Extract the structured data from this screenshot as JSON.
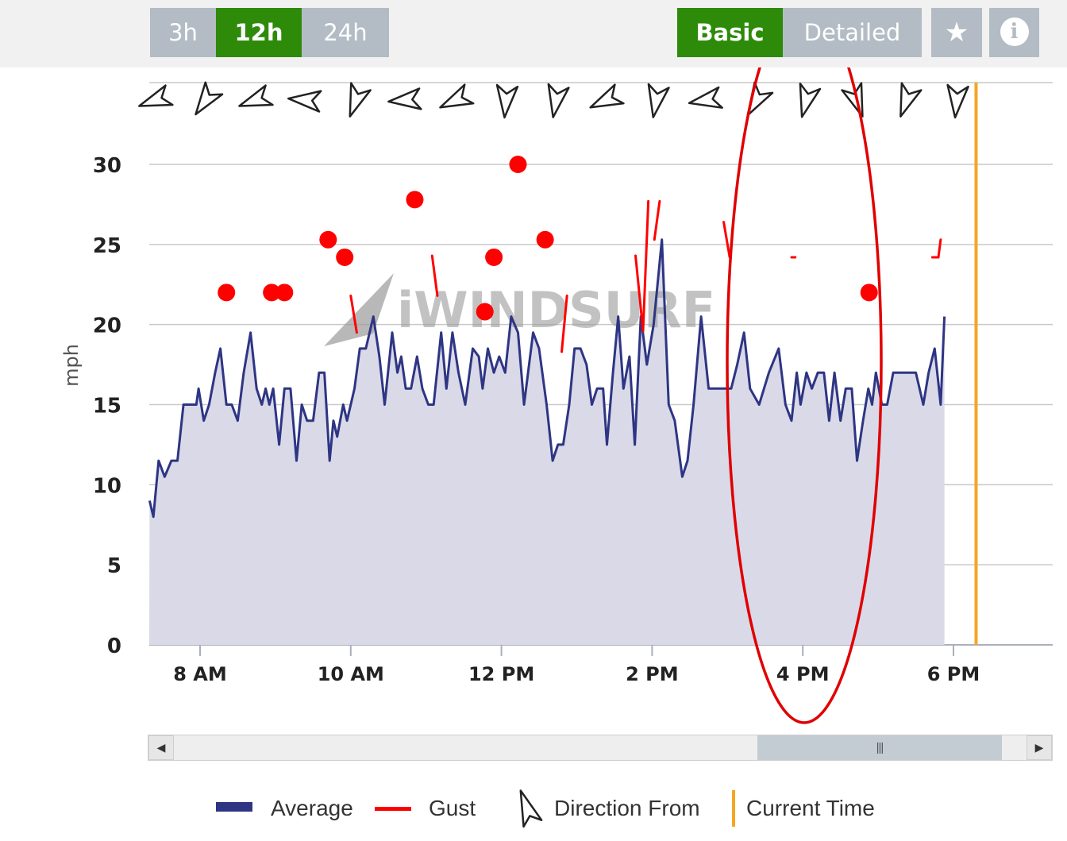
{
  "controls": {
    "range_buttons": [
      {
        "label": "3h",
        "active": false
      },
      {
        "label": "12h",
        "active": true
      },
      {
        "label": "24h",
        "active": false
      }
    ],
    "view_buttons": [
      {
        "label": "Basic",
        "active": true
      },
      {
        "label": "Detailed",
        "active": false
      }
    ],
    "icons": [
      "star-icon",
      "info-icon"
    ],
    "info_glyph": "i"
  },
  "watermark": "iWINDSURF",
  "legend": {
    "average": "Average",
    "gust": "Gust",
    "direction": "Direction From",
    "current_time": "Current Time"
  },
  "colors": {
    "average_line": "#2e3583",
    "area_fill": "#d9d9e8",
    "gust": "#ff0000",
    "current_time": "#f5a623",
    "active_button": "#2e8b0a",
    "inactive_button": "#b3bcc4",
    "annotation": "#e00000"
  },
  "chart_data": {
    "type": "line",
    "ylabel": "mph",
    "xlabel": "",
    "ylim": [
      0,
      30
    ],
    "y_ticks": [
      0,
      5,
      10,
      15,
      20,
      25,
      30
    ],
    "x_domain_hours": [
      7.33,
      19.25
    ],
    "x_ticks": [
      {
        "hour": 8,
        "label": "8 AM"
      },
      {
        "hour": 10,
        "label": "10 AM"
      },
      {
        "hour": 12,
        "label": "12 PM"
      },
      {
        "hour": 14,
        "label": "2 PM"
      },
      {
        "hour": 16,
        "label": "4 PM"
      },
      {
        "hour": 18,
        "label": "6 PM"
      }
    ],
    "current_time_hour": 18.3,
    "average": {
      "name": "Average",
      "points": [
        [
          7.33,
          9
        ],
        [
          7.38,
          8
        ],
        [
          7.45,
          11.5
        ],
        [
          7.53,
          10.5
        ],
        [
          7.62,
          11.5
        ],
        [
          7.7,
          11.5
        ],
        [
          7.78,
          15
        ],
        [
          7.88,
          15
        ],
        [
          7.95,
          15
        ],
        [
          7.98,
          16
        ],
        [
          8.05,
          14
        ],
        [
          8.12,
          15
        ],
        [
          8.2,
          17
        ],
        [
          8.27,
          18.5
        ],
        [
          8.35,
          15
        ],
        [
          8.42,
          15
        ],
        [
          8.5,
          14
        ],
        [
          8.58,
          17
        ],
        [
          8.67,
          19.5
        ],
        [
          8.75,
          16
        ],
        [
          8.82,
          15
        ],
        [
          8.87,
          16
        ],
        [
          8.92,
          15
        ],
        [
          8.97,
          16
        ],
        [
          9.05,
          12.5
        ],
        [
          9.12,
          16
        ],
        [
          9.2,
          16
        ],
        [
          9.28,
          11.5
        ],
        [
          9.35,
          15
        ],
        [
          9.42,
          14
        ],
        [
          9.5,
          14
        ],
        [
          9.58,
          17
        ],
        [
          9.65,
          17
        ],
        [
          9.72,
          11.5
        ],
        [
          9.77,
          14
        ],
        [
          9.82,
          13
        ],
        [
          9.9,
          15
        ],
        [
          9.95,
          14
        ],
        [
          10.05,
          16
        ],
        [
          10.12,
          18.5
        ],
        [
          10.2,
          18.5
        ],
        [
          10.3,
          20.5
        ],
        [
          10.38,
          18
        ],
        [
          10.45,
          15
        ],
        [
          10.55,
          19.5
        ],
        [
          10.62,
          17
        ],
        [
          10.67,
          18
        ],
        [
          10.73,
          16
        ],
        [
          10.8,
          16
        ],
        [
          10.88,
          18
        ],
        [
          10.95,
          16
        ],
        [
          11.03,
          15
        ],
        [
          11.1,
          15
        ],
        [
          11.2,
          19.5
        ],
        [
          11.27,
          16
        ],
        [
          11.35,
          19.5
        ],
        [
          11.43,
          17
        ],
        [
          11.52,
          15
        ],
        [
          11.62,
          18.5
        ],
        [
          11.7,
          18
        ],
        [
          11.75,
          16
        ],
        [
          11.82,
          18.5
        ],
        [
          11.9,
          17
        ],
        [
          11.97,
          18
        ],
        [
          12.05,
          17
        ],
        [
          12.13,
          20.5
        ],
        [
          12.22,
          19.5
        ],
        [
          12.3,
          15
        ],
        [
          12.42,
          19.5
        ],
        [
          12.5,
          18.5
        ],
        [
          12.6,
          15
        ],
        [
          12.68,
          11.5
        ],
        [
          12.75,
          12.5
        ],
        [
          12.82,
          12.5
        ],
        [
          12.9,
          15
        ],
        [
          12.97,
          18.5
        ],
        [
          13.05,
          18.5
        ],
        [
          13.13,
          17.5
        ],
        [
          13.2,
          15
        ],
        [
          13.27,
          16
        ],
        [
          13.35,
          16
        ],
        [
          13.4,
          12.5
        ],
        [
          13.48,
          17
        ],
        [
          13.55,
          20.5
        ],
        [
          13.62,
          16
        ],
        [
          13.7,
          18
        ],
        [
          13.77,
          12.5
        ],
        [
          13.85,
          20.5
        ],
        [
          13.93,
          17.5
        ],
        [
          14.02,
          20
        ],
        [
          14.13,
          25.3
        ],
        [
          14.22,
          15
        ],
        [
          14.3,
          14
        ],
        [
          14.4,
          10.5
        ],
        [
          14.47,
          11.5
        ],
        [
          14.55,
          15
        ],
        [
          14.65,
          20.5
        ],
        [
          14.75,
          16
        ],
        [
          14.85,
          16
        ],
        [
          14.95,
          16
        ],
        [
          15.05,
          16
        ],
        [
          15.13,
          17.5
        ],
        [
          15.22,
          19.5
        ],
        [
          15.3,
          16
        ],
        [
          15.42,
          15
        ],
        [
          15.55,
          17
        ],
        [
          15.68,
          18.5
        ],
        [
          15.77,
          15
        ],
        [
          15.85,
          14
        ],
        [
          15.92,
          17
        ],
        [
          15.97,
          15
        ],
        [
          16.05,
          17
        ],
        [
          16.12,
          16
        ],
        [
          16.2,
          17
        ],
        [
          16.28,
          17
        ],
        [
          16.35,
          14
        ],
        [
          16.42,
          17
        ],
        [
          16.5,
          14
        ],
        [
          16.57,
          16
        ],
        [
          16.65,
          16
        ],
        [
          16.72,
          11.5
        ],
        [
          16.8,
          14
        ],
        [
          16.87,
          16
        ],
        [
          16.92,
          15
        ],
        [
          16.97,
          17
        ],
        [
          17.05,
          15
        ],
        [
          17.12,
          15
        ],
        [
          17.2,
          17
        ],
        [
          17.3,
          17
        ],
        [
          17.4,
          17
        ],
        [
          17.5,
          17
        ],
        [
          17.6,
          15
        ],
        [
          17.67,
          17
        ],
        [
          17.75,
          18.5
        ],
        [
          17.83,
          15
        ],
        [
          17.88,
          20.5
        ]
      ]
    },
    "gust_dots": [
      [
        8.35,
        22
      ],
      [
        8.95,
        22
      ],
      [
        9.12,
        22
      ],
      [
        9.7,
        25.3
      ],
      [
        9.92,
        24.2
      ],
      [
        10.85,
        27.8
      ],
      [
        11.78,
        20.8
      ],
      [
        11.9,
        24.2
      ],
      [
        12.22,
        30
      ],
      [
        12.58,
        25.3
      ],
      [
        16.88,
        22
      ]
    ],
    "gust_segments": [
      [
        [
          10.0,
          21.8
        ],
        [
          10.08,
          19.5
        ]
      ],
      [
        [
          11.08,
          24.3
        ],
        [
          11.15,
          21.8
        ]
      ],
      [
        [
          12.87,
          21.8
        ],
        [
          12.8,
          18.3
        ]
      ],
      [
        [
          13.78,
          24.3
        ],
        [
          13.88,
          19.6
        ]
      ],
      [
        [
          13.88,
          19.6
        ],
        [
          13.95,
          27.7
        ]
      ],
      [
        [
          14.03,
          25.3
        ],
        [
          14.1,
          27.7
        ]
      ],
      [
        [
          14.95,
          26.4
        ],
        [
          15.03,
          24.2
        ]
      ],
      [
        [
          15.85,
          24.2
        ],
        [
          15.9,
          24.2
        ]
      ],
      [
        [
          17.72,
          24.2
        ],
        [
          17.8,
          24.2
        ]
      ],
      [
        [
          17.8,
          24.2
        ],
        [
          17.83,
          25.3
        ]
      ]
    ],
    "direction_from_deg": [
      250,
      215,
      250,
      275,
      200,
      265,
      245,
      185,
      190,
      245,
      190,
      260,
      210,
      195,
      160,
      200,
      185
    ]
  }
}
